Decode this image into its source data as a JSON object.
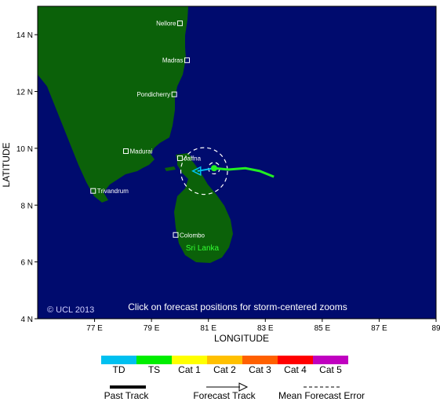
{
  "map": {
    "copyright": "© UCL 2013",
    "instruction": "Click on forecast positions for storm-centered zooms",
    "x_axis_label": "LONGITUDE",
    "y_axis_label": "LATITUDE",
    "x_ticks": [
      "77 E",
      "79 E",
      "81 E",
      "83 E",
      "85 E",
      "87 E",
      "89"
    ],
    "y_ticks": [
      "14 N",
      "12 N",
      "10 N",
      "8 N",
      "6 N",
      "4 N"
    ],
    "lon_range": [
      75,
      89
    ],
    "lat_range": [
      4,
      15
    ],
    "colors": {
      "ocean": "#000b6e",
      "land": "#0b6109",
      "track": "#22ee22"
    },
    "places": [
      {
        "name": "Nellore",
        "lon": 80.0,
        "lat": 14.4
      },
      {
        "name": "Madras",
        "lon": 80.25,
        "lat": 13.1
      },
      {
        "name": "Pondicherry",
        "lon": 79.8,
        "lat": 11.9
      },
      {
        "name": "Madurai",
        "lon": 78.1,
        "lat": 9.9
      },
      {
        "name": "Jaffna",
        "lon": 80.0,
        "lat": 9.65
      },
      {
        "name": "Trivandrum",
        "lon": 76.95,
        "lat": 8.5
      },
      {
        "name": "Colombo",
        "lon": 79.85,
        "lat": 6.95
      }
    ],
    "country_label": "Sri Lanka",
    "storm": {
      "current_position": {
        "lon": 81.2,
        "lat": 9.3
      },
      "past_track": [
        {
          "lon": 83.3,
          "lat": 9.0
        },
        {
          "lon": 82.8,
          "lat": 9.2
        },
        {
          "lon": 82.3,
          "lat": 9.3
        },
        {
          "lon": 81.7,
          "lat": 9.25
        },
        {
          "lon": 81.2,
          "lat": 9.3
        }
      ],
      "forecast_track": [
        {
          "lon": 81.2,
          "lat": 9.3
        },
        {
          "lon": 80.45,
          "lat": 9.2
        }
      ],
      "error_circles": [
        {
          "lon": 80.85,
          "lat": 9.2,
          "radius_deg": 0.82
        },
        {
          "lon": 81.2,
          "lat": 9.3,
          "radius_deg": 0.2
        }
      ]
    }
  },
  "legend": {
    "categories": [
      {
        "label": "TD",
        "color": "#00c0f0"
      },
      {
        "label": "TS",
        "color": "#00ee00"
      },
      {
        "label": "Cat 1",
        "color": "#ffff00"
      },
      {
        "label": "Cat 2",
        "color": "#ffc000"
      },
      {
        "label": "Cat 3",
        "color": "#ff6000"
      },
      {
        "label": "Cat 4",
        "color": "#ff0000"
      },
      {
        "label": "Cat 5",
        "color": "#c000c0"
      }
    ],
    "past_track_label": "Past Track",
    "forecast_track_label": "Forecast Track",
    "error_label": "Mean Forecast Error"
  }
}
